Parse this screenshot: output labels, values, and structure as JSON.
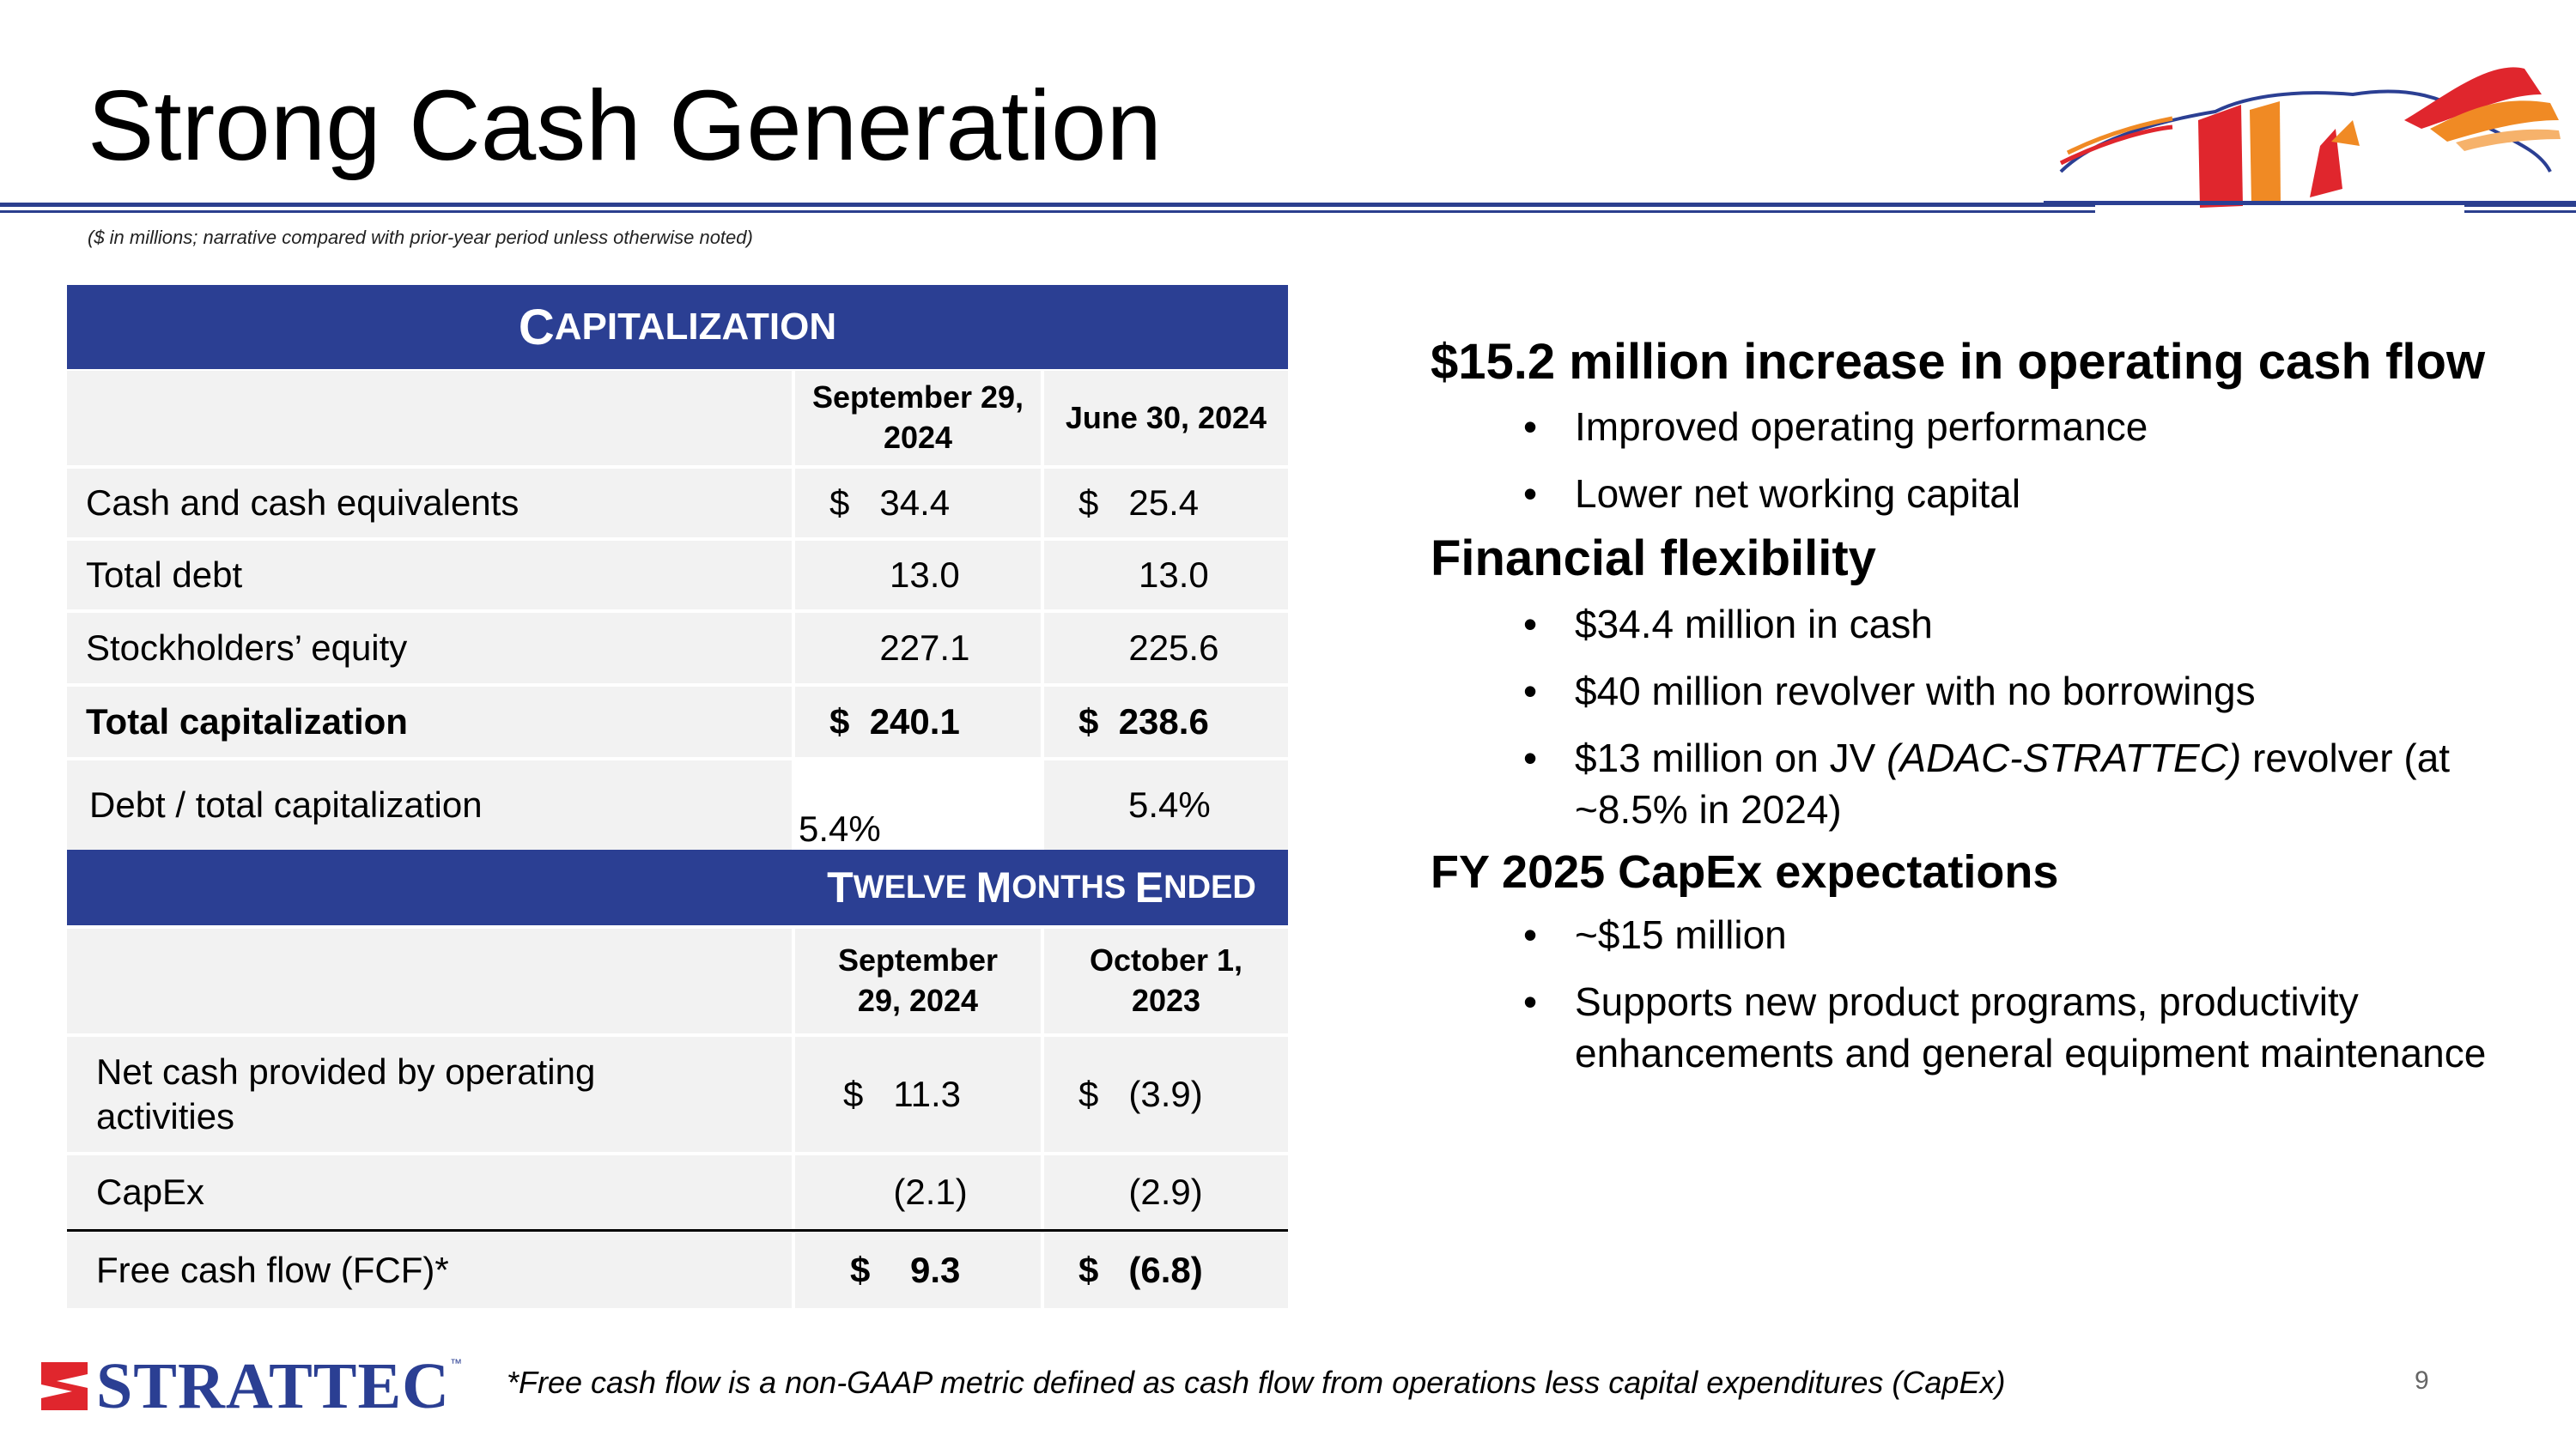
{
  "slide": {
    "title": "Strong Cash Generation",
    "subnote": "($ in millions; narrative compared with prior-year period unless otherwise noted)",
    "page_number": "9",
    "footnote": "*Free cash flow is a non-GAAP metric defined as cash flow from operations less capital expenditures (CapEx)",
    "brand": {
      "logo_text": "STRATTEC",
      "tm": "™",
      "blue": "#2b3f93",
      "red": "#e0262d"
    }
  },
  "cap": {
    "header_first": "C",
    "header_rest": "APITALIZATION",
    "col1": "September 29, 2024",
    "col2": "June 30, 2024",
    "rows": [
      {
        "label": "Cash and cash equivalents",
        "v1": "$   34.4",
        "v2": "$   25.4"
      },
      {
        "label": "Total debt",
        "v1": "      13.0",
        "v2": "      13.0"
      },
      {
        "label": "Stockholders’ equity",
        "v1": "     227.1",
        "v2": "     225.6"
      },
      {
        "label": "Total capitalization",
        "v1": "$  240.1",
        "v2": "$  238.6"
      },
      {
        "label": "Debt / total capitalization",
        "v1": "5.4%",
        "v2": "5.4%"
      }
    ]
  },
  "tm": {
    "w1": "T",
    "w1r": "WELVE ",
    "w2": "M",
    "w2r": "ONTHS ",
    "w3": "E",
    "w3r": "NDED",
    "col1": "September 29, 2024",
    "col2": "October 1, 2023",
    "rows": [
      {
        "label": "Net cash provided by operating activities",
        "v1": "$   11.3",
        "v2": "$   (3.9)"
      },
      {
        "label": "CapEx",
        "v1": "     (2.1)",
        "v2": "     (2.9)"
      },
      {
        "label": "Free cash flow (FCF)*",
        "v1": "$    9.3",
        "v2": "$   (6.8)"
      }
    ]
  },
  "right": {
    "h1": "$15.2 million increase in operating cash flow",
    "h1_items": [
      "Improved operating performance",
      "Lower net working capital"
    ],
    "h2": "Financial flexibility",
    "h2_items": [
      "$34.4 million in cash",
      "$40 million revolver with no borrowings"
    ],
    "h2_item3_a": "$13 million on JV ",
    "h2_item3_b": "(ADAC-STRATTEC)",
    "h2_item3_c": " revolver (at ~8.5% in 2024)",
    "h3": "FY 2025 CapEx expectations",
    "h3_items": [
      "~$15 million",
      "Supports new product programs, productivity enhancements and general equipment maintenance"
    ],
    "bullet": "•"
  }
}
